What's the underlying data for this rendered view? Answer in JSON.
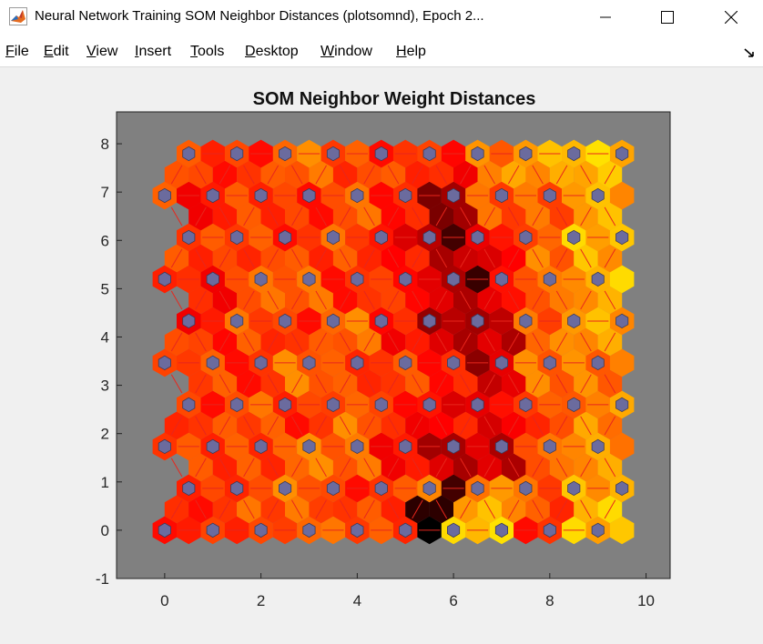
{
  "window": {
    "title": "Neural Network Training SOM Neighbor Distances (plotsomnd), Epoch 2...",
    "icon": "matlab-icon"
  },
  "menu": {
    "items": [
      {
        "label": "File",
        "key": "F",
        "rest": "ile"
      },
      {
        "label": "Edit",
        "key": "E",
        "rest": "dit"
      },
      {
        "label": "View",
        "key": "V",
        "rest": "iew"
      },
      {
        "label": "Insert",
        "key": "I",
        "rest": "nsert"
      },
      {
        "label": "Tools",
        "key": "T",
        "rest": "ools"
      },
      {
        "label": "Desktop",
        "key": "D",
        "rest": "esktop"
      },
      {
        "label": "Window",
        "key": "W",
        "rest": "indow"
      },
      {
        "label": "Help",
        "key": "H",
        "rest": "elp"
      }
    ]
  },
  "chart_data": {
    "type": "heatmap",
    "title": "SOM Neighbor Weight Distances",
    "xlabel": "",
    "ylabel": "",
    "xlim": [
      -1,
      10.5
    ],
    "ylim": [
      -1,
      8.66
    ],
    "xticks": [
      0,
      2,
      4,
      6,
      8,
      10
    ],
    "yticks": [
      -1,
      0,
      1,
      2,
      3,
      4,
      5,
      6,
      7,
      8
    ],
    "grid": false,
    "topology": "hextop",
    "grid_size": [
      10,
      10
    ],
    "colormap": [
      "#000000",
      "#8b0000",
      "#ff0000",
      "#ff8000",
      "#ffff00"
    ],
    "background_color": "#808080",
    "neuron_color": "#6b6b9e",
    "neighbor_distances": [
      [
        0.6,
        0.55,
        0.6,
        0.7,
        0.65,
        0.65,
        0.85,
        0.9,
        0.6,
        0.85
      ],
      [
        0.55,
        0.6,
        0.65,
        0.7,
        0.6,
        0.6,
        0.8,
        0.8,
        0.65,
        0.85
      ],
      [
        0.6,
        0.6,
        0.65,
        0.7,
        0.7,
        0.55,
        0.35,
        0.4,
        0.65,
        0.8
      ],
      [
        0.65,
        0.6,
        0.65,
        0.6,
        0.7,
        0.55,
        0.5,
        0.45,
        0.65,
        0.75
      ],
      [
        0.55,
        0.65,
        0.6,
        0.7,
        0.65,
        0.6,
        0.55,
        0.45,
        0.7,
        0.75
      ],
      [
        0.65,
        0.55,
        0.65,
        0.6,
        0.7,
        0.55,
        0.35,
        0.4,
        0.7,
        0.8
      ],
      [
        0.6,
        0.55,
        0.65,
        0.7,
        0.6,
        0.55,
        0.4,
        0.45,
        0.7,
        0.85
      ],
      [
        0.6,
        0.6,
        0.65,
        0.6,
        0.65,
        0.5,
        0.35,
        0.5,
        0.7,
        0.85
      ],
      [
        0.65,
        0.55,
        0.6,
        0.6,
        0.65,
        0.55,
        0.3,
        0.65,
        0.7,
        0.8
      ],
      [
        0.7,
        0.6,
        0.6,
        0.7,
        0.65,
        0.6,
        0.55,
        0.75,
        0.8,
        0.9
      ]
    ],
    "dark_cells": [
      {
        "x": 5.5,
        "y": 0.0,
        "value": 0.0
      },
      {
        "x": 5.5,
        "y": 0.5,
        "value": 0.08
      },
      {
        "x": 6.0,
        "y": 0.9,
        "value": 0.12
      },
      {
        "x": 6.0,
        "y": 6.05,
        "value": 0.12
      },
      {
        "x": 6.5,
        "y": 5.2,
        "value": 0.1
      },
      {
        "x": 6.5,
        "y": 3.45,
        "value": 0.25
      },
      {
        "x": 6.5,
        "y": 4.1,
        "value": 0.3
      },
      {
        "x": 5.5,
        "y": 1.75,
        "value": 0.3
      }
    ]
  }
}
